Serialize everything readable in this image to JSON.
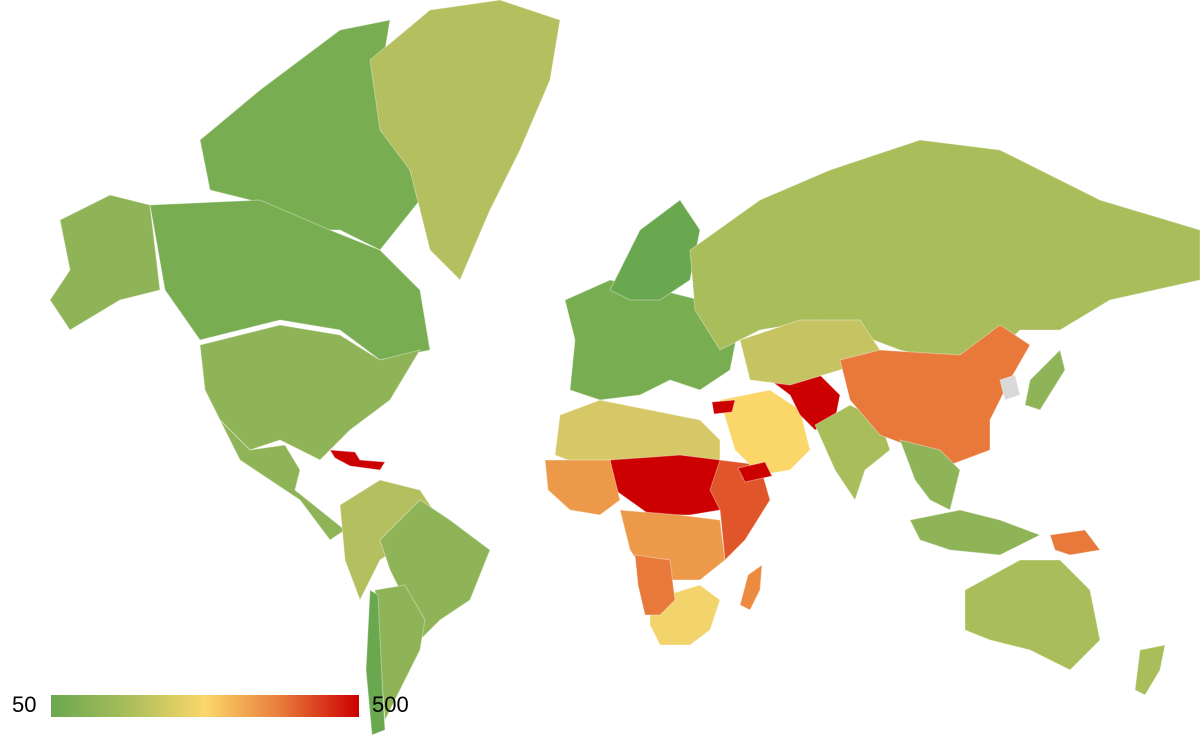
{
  "legend": {
    "min_label": "50",
    "max_label": "500",
    "gradient_colors": [
      "#6aa84f",
      "#a9bd5a",
      "#fbd76a",
      "#e8793a",
      "#cc0000"
    ]
  },
  "no_data_color": "#d9d9d9",
  "regions": [
    {
      "name": "canada-arctic",
      "color": "#78ad51"
    },
    {
      "name": "alaska",
      "color": "#8fb458"
    },
    {
      "name": "canada",
      "color": "#78ad51"
    },
    {
      "name": "usa",
      "color": "#8fb458"
    },
    {
      "name": "mexico-central-america",
      "color": "#8fb458"
    },
    {
      "name": "caribbean-haiti",
      "color": "#cc0000"
    },
    {
      "name": "greenland",
      "color": "#b4bf5f"
    },
    {
      "name": "south-america-north",
      "color": "#b4bf5f"
    },
    {
      "name": "brazil",
      "color": "#8fb458"
    },
    {
      "name": "southern-cone",
      "color": "#8fb458"
    },
    {
      "name": "chile",
      "color": "#6aa84f"
    },
    {
      "name": "europe",
      "color": "#78ad51"
    },
    {
      "name": "scandinavia",
      "color": "#6aa84f"
    },
    {
      "name": "russia",
      "color": "#a9bd5a"
    },
    {
      "name": "north-africa",
      "color": "#d6c866"
    },
    {
      "name": "sahel",
      "color": "#cc0000"
    },
    {
      "name": "west-africa",
      "color": "#ec9a4a"
    },
    {
      "name": "central-africa",
      "color": "#ec9a4a"
    },
    {
      "name": "east-africa",
      "color": "#e0562a"
    },
    {
      "name": "southern-africa",
      "color": "#f2d36c"
    },
    {
      "name": "angola",
      "color": "#e8793a"
    },
    {
      "name": "madagascar",
      "color": "#ec8a40"
    },
    {
      "name": "middle-east",
      "color": "#fbd76a"
    },
    {
      "name": "afghanistan-pakistan",
      "color": "#cc0000"
    },
    {
      "name": "central-asia",
      "color": "#c6c462"
    },
    {
      "name": "india",
      "color": "#a9bd5a"
    },
    {
      "name": "china",
      "color": "#e8793a"
    },
    {
      "name": "korea",
      "color": "#d9d9d9"
    },
    {
      "name": "japan",
      "color": "#8fb458"
    },
    {
      "name": "southeast-asia",
      "color": "#8fb458"
    },
    {
      "name": "indonesia",
      "color": "#8fb458"
    },
    {
      "name": "papua-new-guinea",
      "color": "#e8793a"
    },
    {
      "name": "australia",
      "color": "#a9bd5a"
    },
    {
      "name": "new-zealand",
      "color": "#a9bd5a"
    },
    {
      "name": "yemen",
      "color": "#cc0000"
    },
    {
      "name": "syria",
      "color": "#cc0000"
    }
  ]
}
